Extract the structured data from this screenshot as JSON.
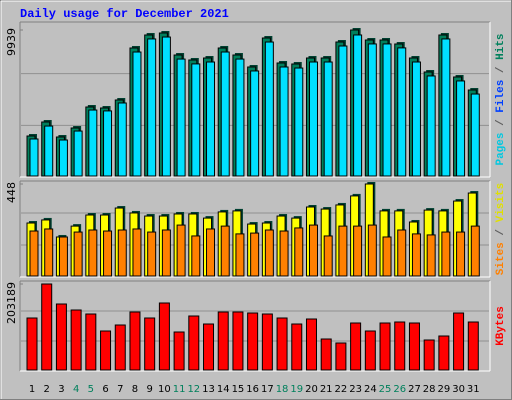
{
  "chart_data": [
    {
      "type": "bar",
      "title": "Daily usage for December 2021",
      "ylim": [
        0,
        9939
      ],
      "yticks": [
        9939
      ],
      "axis_label": [
        {
          "text": "Pages",
          "color": "#00c8e0"
        },
        {
          "text": " / ",
          "color": "#606060"
        },
        {
          "text": "Files",
          "color": "#0040ff"
        },
        {
          "text": " / ",
          "color": "#606060"
        },
        {
          "text": "Hits",
          "color": "#00805c"
        }
      ],
      "series": [
        {
          "name": "Hits",
          "color": "#00805c",
          "values": [
            2723,
            3676,
            2655,
            3268,
            4697,
            4629,
            5174,
            8714,
            9599,
            9735,
            8237,
            7897,
            8033,
            8714,
            8237,
            7420,
            9394,
            7693,
            7625,
            8033,
            8033,
            9122,
            9939,
            9258,
            9258,
            8986,
            8033,
            7080,
            9599,
            6740,
            5854
          ]
        },
        {
          "name": "Pages",
          "color": "#00e0ff",
          "values": [
            2520,
            3400,
            2450,
            3060,
            4490,
            4430,
            4970,
            8440,
            9330,
            9460,
            7960,
            7630,
            7760,
            8440,
            7960,
            7150,
            9120,
            7420,
            7350,
            7760,
            7760,
            8850,
            9600,
            8990,
            8990,
            8720,
            7760,
            6810,
            9330,
            6470,
            5580
          ]
        }
      ]
    },
    {
      "type": "bar",
      "ylim": [
        0,
        448
      ],
      "yticks": [
        448
      ],
      "axis_label": [
        {
          "text": "Sites",
          "color": "#ff8000"
        },
        {
          "text": " / ",
          "color": "#606060"
        },
        {
          "text": "Visits",
          "color": "#e0e000"
        }
      ],
      "series": [
        {
          "name": "Visits",
          "color": "#ffff00",
          "values": [
            258,
            273,
            190,
            243,
            297,
            297,
            331,
            307,
            292,
            292,
            302,
            302,
            282,
            312,
            317,
            253,
            258,
            292,
            282,
            336,
            326,
            346,
            390,
            448,
            317,
            317,
            263,
            321,
            317,
            365,
            404
          ]
        },
        {
          "name": "Sites",
          "color": "#ff8000",
          "values": [
            219,
            229,
            190,
            214,
            224,
            219,
            224,
            229,
            214,
            224,
            248,
            195,
            229,
            243,
            205,
            209,
            224,
            219,
            234,
            248,
            195,
            243,
            243,
            248,
            190,
            224,
            205,
            200,
            214,
            214,
            243
          ]
        }
      ]
    },
    {
      "type": "bar",
      "ylim": [
        0,
        203189
      ],
      "yticks": [
        203189
      ],
      "axis_label": [
        {
          "text": "KBytes",
          "color": "#ff0000"
        }
      ],
      "categories": [
        "1",
        "2",
        "3",
        "4",
        "5",
        "6",
        "7",
        "8",
        "9",
        "10",
        "11",
        "12",
        "13",
        "14",
        "15",
        "16",
        "17",
        "18",
        "19",
        "20",
        "21",
        "22",
        "23",
        "24",
        "25",
        "26",
        "27",
        "28",
        "29",
        "30",
        "31"
      ],
      "category_colors": [
        "#000000",
        "#000000",
        "#000000",
        "#00805c",
        "#00805c",
        "#000000",
        "#000000",
        "#000000",
        "#000000",
        "#000000",
        "#00805c",
        "#00805c",
        "#000000",
        "#000000",
        "#000000",
        "#000000",
        "#000000",
        "#00805c",
        "#00805c",
        "#000000",
        "#000000",
        "#000000",
        "#000000",
        "#000000",
        "#00805c",
        "#00805c",
        "#000000",
        "#000000",
        "#000000",
        "#000000",
        "#000000"
      ],
      "series": [
        {
          "name": "KBytes",
          "color": "#ff0000",
          "values": [
            122858,
            203189,
            155935,
            141760,
            132309,
            92142,
            106317,
            137034,
            122858,
            158297,
            89781,
            127583,
            108683,
            137034,
            137034,
            134672,
            132309,
            122858,
            108683,
            120495,
            73242,
            63791,
            111045,
            92142,
            111045,
            113407,
            111045,
            70880,
            80331,
            134672,
            113407
          ]
        }
      ]
    }
  ]
}
